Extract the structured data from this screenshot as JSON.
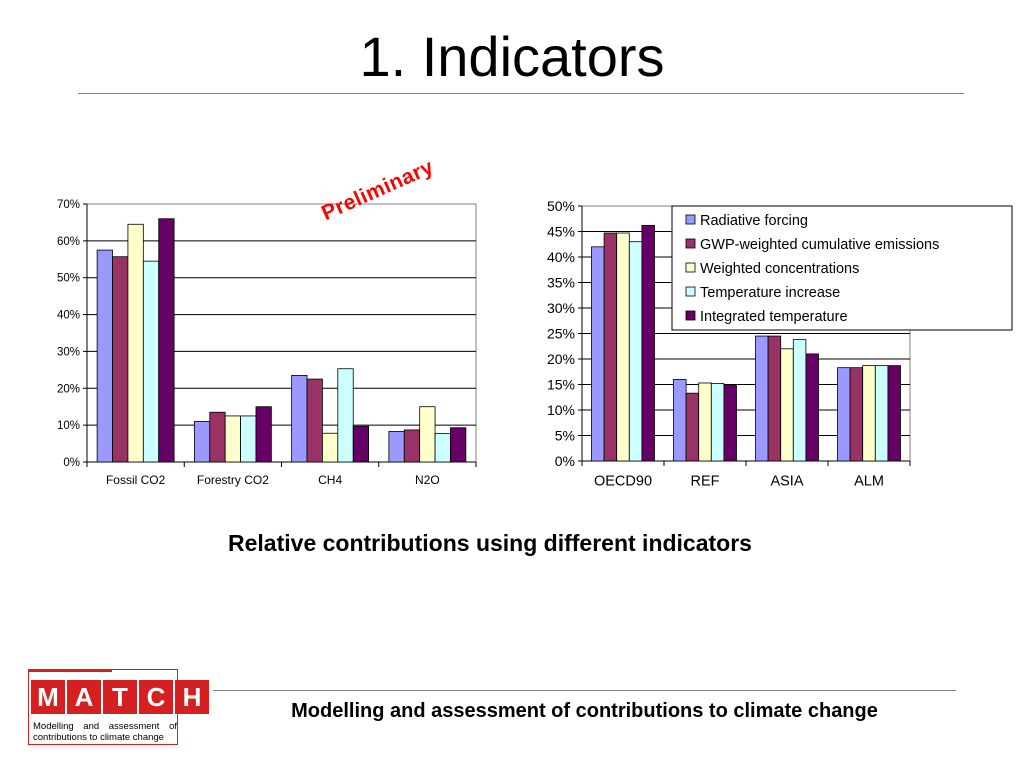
{
  "slide": {
    "title": "1. Indicators",
    "caption": "Relative contributions using different indicators",
    "stamp": "Preliminary",
    "footer": "Modelling and assessment of contributions to climate change"
  },
  "logo": {
    "letters": [
      "M",
      "A",
      "T",
      "C",
      "H"
    ],
    "subtitle": "Modelling and assessment of contributions to climate change",
    "color": "#d42020"
  },
  "chart_data": [
    {
      "type": "bar",
      "categories": [
        "Fossil CO2",
        "Forestry CO2",
        "CH4",
        "N2O"
      ],
      "ylim": [
        0,
        70
      ],
      "yticks": [
        "0%",
        "10%",
        "20%",
        "30%",
        "40%",
        "50%",
        "60%",
        "70%"
      ],
      "grid": true,
      "series": [
        {
          "values": [
            57.5,
            11,
            23.5,
            8.3
          ],
          "color": "#9999ff"
        },
        {
          "values": [
            55.7,
            13.5,
            22.5,
            8.7
          ],
          "color": "#993366"
        },
        {
          "values": [
            64.5,
            12.5,
            7.8,
            15
          ],
          "color": "#ffffcc"
        },
        {
          "values": [
            54.5,
            12.5,
            25.3,
            7.7
          ],
          "color": "#ccffff"
        },
        {
          "values": [
            66,
            15,
            9.7,
            9.3
          ],
          "color": "#660066"
        }
      ]
    },
    {
      "type": "bar",
      "categories": [
        "OECD90",
        "REF",
        "ASIA",
        "ALM"
      ],
      "ylim": [
        0,
        50
      ],
      "yticks": [
        "0%",
        "5%",
        "10%",
        "15%",
        "20%",
        "25%",
        "30%",
        "35%",
        "40%",
        "45%",
        "50%"
      ],
      "grid": true,
      "legend_position": "top-right",
      "series": [
        {
          "name": "Radiative forcing",
          "values": [
            42,
            16,
            24.5,
            18.3
          ],
          "color": "#9999ff"
        },
        {
          "name": "GWP-weighted cumulative emissions",
          "values": [
            44.7,
            13.3,
            24.5,
            18.3
          ],
          "color": "#993366"
        },
        {
          "name": "Weighted concentrations",
          "values": [
            44.7,
            15.3,
            22,
            18.7
          ],
          "color": "#ffffcc"
        },
        {
          "name": "Temperature increase",
          "values": [
            43,
            15.2,
            23.8,
            18.7
          ],
          "color": "#ccffff"
        },
        {
          "name": "Integrated temperature",
          "values": [
            46.2,
            14.8,
            21,
            18.7
          ],
          "color": "#660066"
        }
      ]
    }
  ]
}
